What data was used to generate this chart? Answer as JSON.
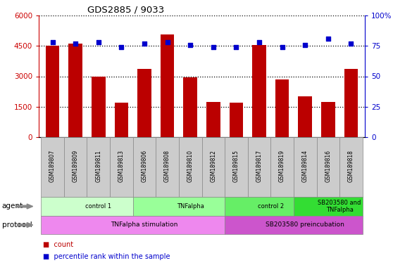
{
  "title": "GDS2885 / 9033",
  "samples": [
    "GSM189807",
    "GSM189809",
    "GSM189811",
    "GSM189813",
    "GSM189806",
    "GSM189808",
    "GSM189810",
    "GSM189812",
    "GSM189815",
    "GSM189817",
    "GSM189819",
    "GSM189814",
    "GSM189816",
    "GSM189818"
  ],
  "counts": [
    4500,
    4600,
    3000,
    1700,
    3350,
    5050,
    2950,
    1750,
    1700,
    4550,
    2850,
    2000,
    1750,
    3350
  ],
  "percentiles": [
    78,
    77,
    78,
    74,
    77,
    78,
    76,
    74,
    74,
    78,
    74,
    76,
    81,
    77
  ],
  "ylim_left": [
    0,
    6000
  ],
  "ylim_right": [
    0,
    100
  ],
  "yticks_left": [
    0,
    1500,
    3000,
    4500,
    6000
  ],
  "ytick_labels_left": [
    "0",
    "1500",
    "3000",
    "4500",
    "6000"
  ],
  "yticks_right": [
    0,
    25,
    50,
    75,
    100
  ],
  "ytick_labels_right": [
    "0",
    "25",
    "50",
    "75",
    "100%"
  ],
  "bar_color": "#bb0000",
  "dot_color": "#0000cc",
  "agent_groups": [
    {
      "label": "control 1",
      "start": 0,
      "end": 4,
      "color": "#ccffcc"
    },
    {
      "label": "TNFalpha",
      "start": 4,
      "end": 8,
      "color": "#99ff99"
    },
    {
      "label": "control 2",
      "start": 8,
      "end": 11,
      "color": "#66ee66"
    },
    {
      "label": "SB203580 and\nTNFalpha",
      "start": 11,
      "end": 14,
      "color": "#33dd33"
    }
  ],
  "protocol_groups": [
    {
      "label": "TNFalpha stimulation",
      "start": 0,
      "end": 8,
      "color": "#ee88ee"
    },
    {
      "label": "SB203580 preincubation",
      "start": 8,
      "end": 14,
      "color": "#cc55cc"
    }
  ],
  "agent_label": "agent",
  "protocol_label": "protocol",
  "legend_count_label": "count",
  "legend_pct_label": "percentile rank within the sample",
  "background_color": "#ffffff",
  "tick_color_left": "#cc0000",
  "tick_color_right": "#0000cc",
  "label_box_color": "#cccccc",
  "label_box_edge": "#888888"
}
